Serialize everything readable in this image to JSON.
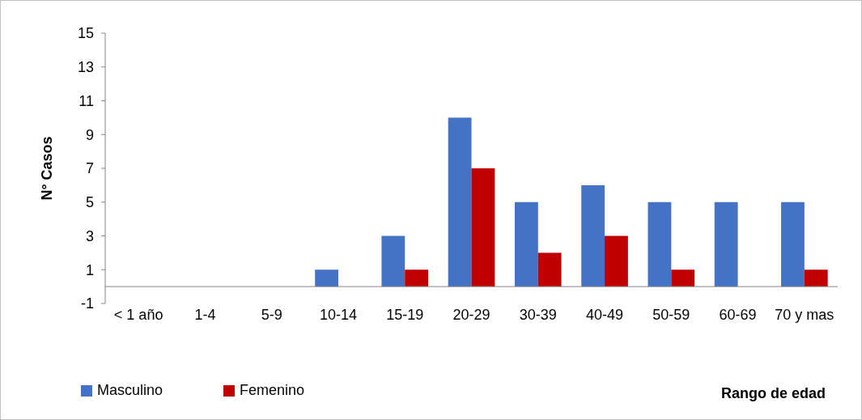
{
  "chart_data": {
    "type": "bar",
    "xlabel": "Rango de edad",
    "ylabel": "N° Casos",
    "categories": [
      "< 1 año",
      "1-4",
      "5-9",
      "10-14",
      "15-19",
      "20-29",
      "30-39",
      "40-49",
      "50-59",
      "60-69",
      "70 y mas"
    ],
    "series": [
      {
        "name": "Masculino",
        "color": "#4472c4",
        "values": [
          0,
          0,
          0,
          1,
          3,
          10,
          5,
          6,
          5,
          5,
          5
        ]
      },
      {
        "name": "Femenino",
        "color": "#c00000",
        "values": [
          0,
          0,
          0,
          0,
          1,
          7,
          2,
          3,
          1,
          0,
          1
        ]
      }
    ],
    "ylim": [
      -1,
      15
    ],
    "yticks": [
      -1,
      1,
      3,
      5,
      7,
      9,
      11,
      13,
      15
    ],
    "grid": false,
    "legend": "bottom left"
  }
}
